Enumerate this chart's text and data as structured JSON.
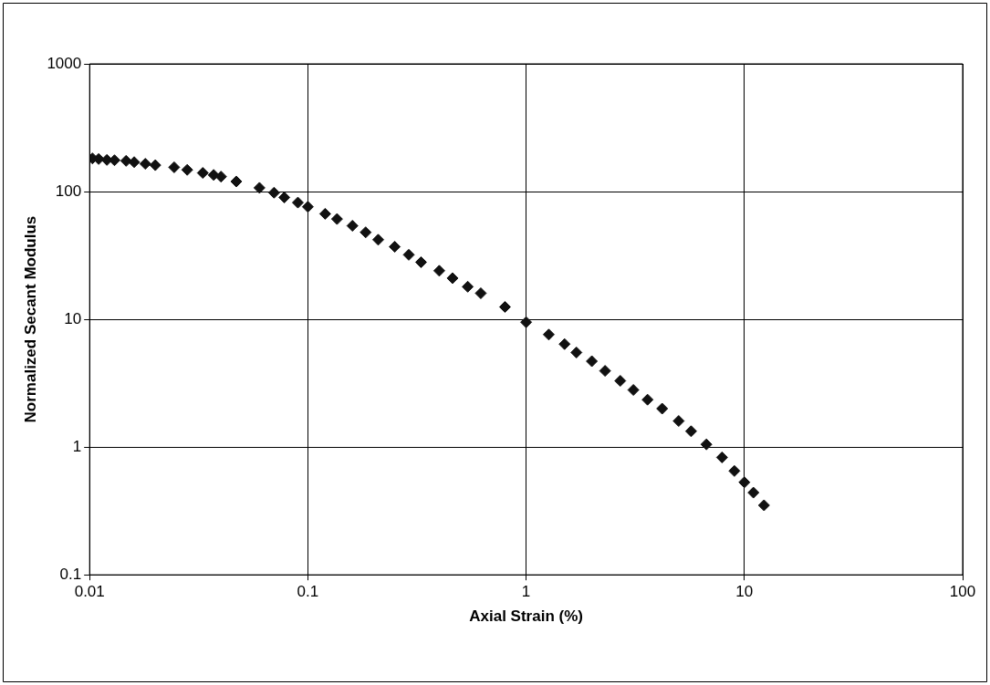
{
  "chart_data": {
    "type": "scatter",
    "xlabel": "Axial Strain (%)",
    "ylabel": "Normalized Secant Modulus",
    "log": "xy",
    "grid": true,
    "marker": "diamond",
    "xlim": [
      0.01,
      100
    ],
    "xticks": [
      0.01,
      0.1,
      1,
      10,
      100
    ],
    "ylim": [
      0.1,
      1000
    ],
    "yticks": [
      0.1,
      1,
      10,
      100,
      1000
    ],
    "series": [
      {
        "color": "#111111",
        "x": [
          0.0103,
          0.011,
          0.012,
          0.013,
          0.0147,
          0.016,
          0.018,
          0.02,
          0.0244,
          0.028,
          0.033,
          0.037,
          0.04,
          0.047,
          0.06,
          0.07,
          0.078,
          0.09,
          0.1,
          0.12,
          0.136,
          0.16,
          0.184,
          0.21,
          0.25,
          0.29,
          0.33,
          0.4,
          0.46,
          0.54,
          0.62,
          0.8,
          1.0,
          1.27,
          1.5,
          1.7,
          2.0,
          2.3,
          2.7,
          3.1,
          3.6,
          4.2,
          5.0,
          5.7,
          6.7,
          7.9,
          9.0,
          10,
          11,
          12.3
        ],
        "values": [
          182,
          180,
          177,
          176,
          174,
          170,
          165,
          161,
          155,
          148,
          140,
          135,
          131,
          120,
          107,
          98,
          90,
          82,
          76,
          67,
          61,
          54,
          48,
          42,
          37,
          32,
          28,
          24,
          21,
          18,
          16,
          12.5,
          9.5,
          7.6,
          6.4,
          5.5,
          4.7,
          3.95,
          3.3,
          2.8,
          2.35,
          2.0,
          1.6,
          1.33,
          1.05,
          0.83,
          0.65,
          0.53,
          0.44,
          0.35
        ]
      }
    ]
  }
}
